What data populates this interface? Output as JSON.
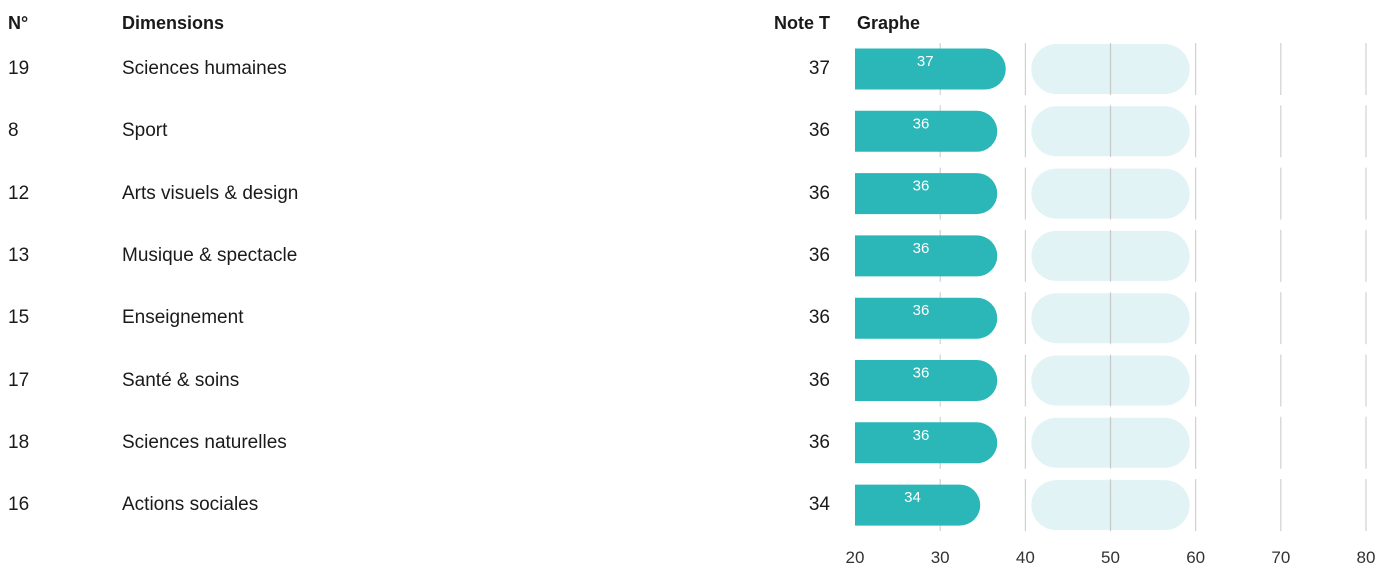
{
  "headers": {
    "number": "N°",
    "dimension": "Dimensions",
    "note": "Note T",
    "graph": "Graphe"
  },
  "rows": [
    {
      "num": "19",
      "dimension": "Sciences humaines",
      "note": "37"
    },
    {
      "num": "8",
      "dimension": "Sport",
      "note": "36"
    },
    {
      "num": "12",
      "dimension": "Arts visuels & design",
      "note": "36"
    },
    {
      "num": "13",
      "dimension": "Musique & spectacle",
      "note": "36"
    },
    {
      "num": "15",
      "dimension": "Enseignement",
      "note": "36"
    },
    {
      "num": "17",
      "dimension": "Santé & soins",
      "note": "36"
    },
    {
      "num": "18",
      "dimension": "Sciences naturelles",
      "note": "36"
    },
    {
      "num": "16",
      "dimension": "Actions sociales",
      "note": "34"
    }
  ],
  "chart_data": {
    "type": "bar",
    "orientation": "horizontal",
    "categories": [
      "Sciences humaines",
      "Sport",
      "Arts visuels & design",
      "Musique & spectacle",
      "Enseignement",
      "Santé & soins",
      "Sciences naturelles",
      "Actions sociales"
    ],
    "values": [
      37,
      36,
      36,
      36,
      36,
      36,
      36,
      34
    ],
    "xlim": [
      20,
      80
    ],
    "x_ticks": [
      20,
      30,
      40,
      50,
      60,
      70,
      80
    ],
    "average_band": [
      40,
      60
    ],
    "center_line": 50,
    "bar_color": "#2bb7b7",
    "band_color": "#e1f3f5",
    "grid_color": "#c8c8c8",
    "label_color": "#ffffff"
  }
}
